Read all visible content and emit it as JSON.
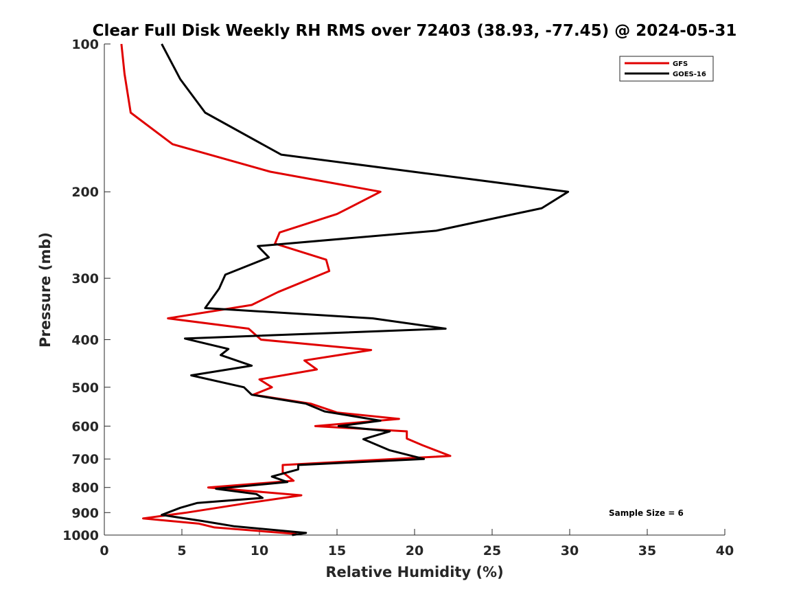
{
  "chart_data": {
    "type": "line",
    "title": "Clear Full Disk Weekly RH RMS over 72403 (38.93, -77.45) @ 2024-05-31",
    "xlabel": "Relative Humidity (%)",
    "ylabel": "Pressure (mb)",
    "xlim": [
      0,
      40
    ],
    "ylim": [
      100,
      1000
    ],
    "y_scale": "log",
    "y_reversed": true,
    "xticks": [
      "0",
      "5",
      "10",
      "15",
      "20",
      "25",
      "30",
      "35",
      "40"
    ],
    "yticks": [
      "100",
      "200",
      "300",
      "400",
      "500",
      "600",
      "700",
      "800",
      "900",
      "1000"
    ],
    "grid": false,
    "legend_position": "top-right",
    "annotation": "Sample Size = 6",
    "series": [
      {
        "name": "GFS",
        "color": "#e00000",
        "points": [
          [
            1.1,
            100
          ],
          [
            1.3,
            115
          ],
          [
            1.7,
            138
          ],
          [
            4.4,
            160
          ],
          [
            10.7,
            182
          ],
          [
            17.8,
            200
          ],
          [
            15.0,
            222
          ],
          [
            11.3,
            242
          ],
          [
            11.0,
            255
          ],
          [
            14.3,
            275
          ],
          [
            14.5,
            290
          ],
          [
            11.2,
            320
          ],
          [
            9.5,
            340
          ],
          [
            4.1,
            362
          ],
          [
            9.3,
            380
          ],
          [
            10.1,
            400
          ],
          [
            17.2,
            420
          ],
          [
            12.9,
            441
          ],
          [
            13.7,
            460
          ],
          [
            10.0,
            482
          ],
          [
            10.8,
            500
          ],
          [
            9.6,
            518
          ],
          [
            13.3,
            540
          ],
          [
            15.0,
            563
          ],
          [
            19.0,
            580
          ],
          [
            13.6,
            600
          ],
          [
            19.5,
            615
          ],
          [
            19.5,
            636
          ],
          [
            20.5,
            656
          ],
          [
            22.3,
            690
          ],
          [
            11.5,
            720
          ],
          [
            11.5,
            745
          ],
          [
            12.2,
            775
          ],
          [
            6.7,
            800
          ],
          [
            12.7,
            830
          ],
          [
            9.3,
            860
          ],
          [
            5.3,
            900
          ],
          [
            2.5,
            925
          ],
          [
            6.1,
            948
          ],
          [
            7.1,
            965
          ],
          [
            12.4,
            995
          ]
        ]
      },
      {
        "name": "GOES-16",
        "color": "#000000",
        "points": [
          [
            3.7,
            100
          ],
          [
            4.9,
            118
          ],
          [
            6.5,
            138
          ],
          [
            11.4,
            168
          ],
          [
            20.5,
            183
          ],
          [
            29.9,
            200
          ],
          [
            28.2,
            216
          ],
          [
            21.4,
            240
          ],
          [
            9.9,
            258
          ],
          [
            10.6,
            272
          ],
          [
            7.8,
            295
          ],
          [
            7.4,
            315
          ],
          [
            6.5,
            345
          ],
          [
            17.3,
            362
          ],
          [
            22.0,
            380
          ],
          [
            5.2,
            398
          ],
          [
            8.0,
            418
          ],
          [
            7.5,
            430
          ],
          [
            9.5,
            452
          ],
          [
            5.6,
            473
          ],
          [
            9.0,
            500
          ],
          [
            9.5,
            518
          ],
          [
            13.0,
            540
          ],
          [
            14.2,
            560
          ],
          [
            17.8,
            585
          ],
          [
            15.1,
            600
          ],
          [
            18.4,
            615
          ],
          [
            16.7,
            638
          ],
          [
            18.4,
            672
          ],
          [
            20.6,
            700
          ],
          [
            12.5,
            720
          ],
          [
            12.5,
            735
          ],
          [
            10.8,
            760
          ],
          [
            11.8,
            780
          ],
          [
            7.2,
            805
          ],
          [
            9.8,
            825
          ],
          [
            10.2,
            840
          ],
          [
            6.0,
            860
          ],
          [
            4.9,
            880
          ],
          [
            3.7,
            910
          ],
          [
            6.2,
            935
          ],
          [
            8.4,
            960
          ],
          [
            13.0,
            990
          ],
          [
            12.1,
            1000
          ]
        ]
      }
    ]
  }
}
